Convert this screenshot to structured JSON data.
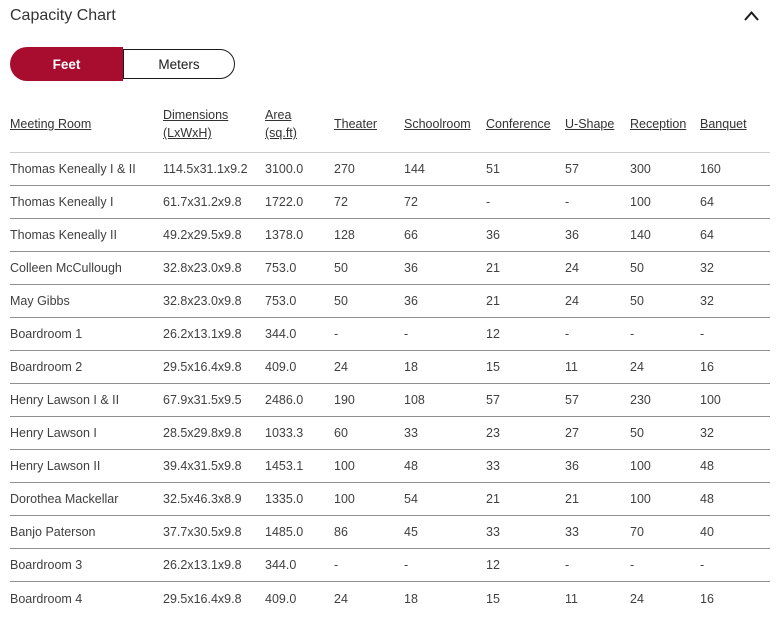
{
  "header": {
    "title": "Capacity Chart",
    "collapse_icon": "chevron-up-icon"
  },
  "unit_toggle": {
    "options": [
      {
        "label": "Feet",
        "selected": true
      },
      {
        "label": "Meters",
        "selected": false
      }
    ]
  },
  "table": {
    "columns": [
      "Meeting Room",
      "Dimensions (LxWxH)",
      "Area (sq.ft)",
      "Theater",
      "Schoolroom",
      "Conference",
      "U-Shape",
      "Reception",
      "Banquet"
    ],
    "rows": [
      [
        "Thomas Keneally I & II",
        "114.5x31.1x9.2",
        "3100.0",
        "270",
        "144",
        "51",
        "57",
        "300",
        "160"
      ],
      [
        "Thomas Keneally I",
        "61.7x31.2x9.8",
        "1722.0",
        "72",
        "72",
        "-",
        "-",
        "100",
        "64"
      ],
      [
        "Thomas Keneally II",
        "49.2x29.5x9.8",
        "1378.0",
        "128",
        "66",
        "36",
        "36",
        "140",
        "64"
      ],
      [
        "Colleen McCullough",
        "32.8x23.0x9.8",
        "753.0",
        "50",
        "36",
        "21",
        "24",
        "50",
        "32"
      ],
      [
        "May Gibbs",
        "32.8x23.0x9.8",
        "753.0",
        "50",
        "36",
        "21",
        "24",
        "50",
        "32"
      ],
      [
        "Boardroom 1",
        "26.2x13.1x9.8",
        "344.0",
        "-",
        "-",
        "12",
        "-",
        "-",
        "-"
      ],
      [
        "Boardroom 2",
        "29.5x16.4x9.8",
        "409.0",
        "24",
        "18",
        "15",
        "11",
        "24",
        "16"
      ],
      [
        "Henry Lawson I & II",
        "67.9x31.5x9.5",
        "2486.0",
        "190",
        "108",
        "57",
        "57",
        "230",
        "100"
      ],
      [
        "Henry Lawson I",
        "28.5x29.8x9.8",
        "1033.3",
        "60",
        "33",
        "23",
        "27",
        "50",
        "32"
      ],
      [
        "Henry Lawson II",
        "39.4x31.5x9.8",
        "1453.1",
        "100",
        "48",
        "33",
        "36",
        "100",
        "48"
      ],
      [
        "Dorothea Mackellar",
        "32.5x46.3x8.9",
        "1335.0",
        "100",
        "54",
        "21",
        "21",
        "100",
        "48"
      ],
      [
        "Banjo Paterson",
        "37.7x30.5x9.8",
        "1485.0",
        "86",
        "45",
        "33",
        "33",
        "70",
        "40"
      ],
      [
        "Boardroom 3",
        "26.2x13.1x9.8",
        "344.0",
        "-",
        "-",
        "12",
        "-",
        "-",
        "-"
      ],
      [
        "Boardroom 4",
        "29.5x16.4x9.8",
        "409.0",
        "24",
        "18",
        "15",
        "11",
        "24",
        "16"
      ]
    ]
  },
  "colors": {
    "accent": "#A80C2E",
    "header_rule": "#cccccc",
    "row_rule": "#8f8f8f",
    "text": "#404040"
  }
}
